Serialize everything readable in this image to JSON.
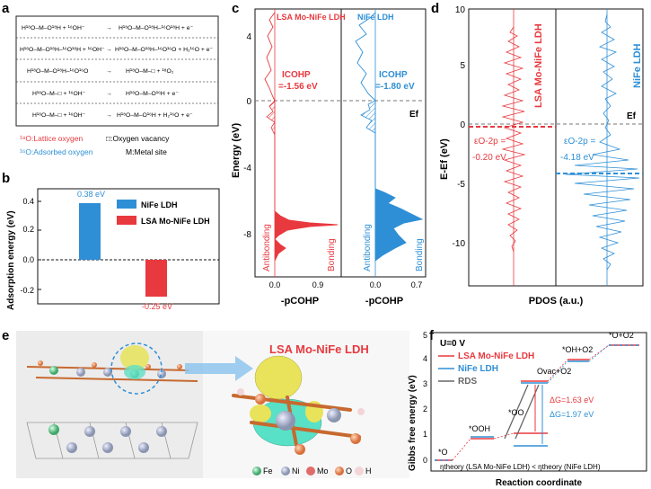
{
  "panel_letters": {
    "a": "a",
    "b": "b",
    "c": "c",
    "d": "d",
    "e": "e",
    "f": "f"
  },
  "panel_a": {
    "rows": [
      {
        "lhs": "H¹⁸O–M–O¹⁸H + ¹⁶OH⁻",
        "rhs": "H¹⁸O–M–O¹⁸H–¹⁶O¹⁸H + e⁻"
      },
      {
        "lhs": "H¹⁸O–M–O¹⁸H–¹⁶O¹⁸H + ¹⁶OH⁻",
        "rhs": "H¹⁸O–M–O¹⁸H–¹⁶O¹⁶O + H₂¹⁶O + e⁻"
      },
      {
        "lhs": "H¹⁸O–M–O¹⁸H–¹⁶O¹⁶O",
        "rhs": "H¹⁸O–M–□ + ¹⁸O₂"
      },
      {
        "lhs": "H¹⁸O–M–□ + ¹⁶OH⁻",
        "rhs": "H¹⁸O–M–O¹⁶H + e⁻"
      },
      {
        "lhs": "H¹⁸O–M–□ + ¹⁶OH⁻",
        "rhs": "H¹⁸O–M–O¹⁶H + H₂¹⁶O + e⁻"
      }
    ],
    "legend_lattice": "¹⁸O:Lattice oxygen",
    "legend_vacancy": "□:Oxygen vacancy",
    "legend_adsorbed": "¹⁶O:Adsorbed oxygen",
    "legend_metal": "M:Metal site"
  },
  "panel_b": {
    "ylabel": "Adsorption energy (eV)",
    "yticks": [
      "0.4",
      "0.2",
      "0.0",
      "-0.2"
    ],
    "legend": [
      "NiFe LDH",
      "LSA Mo-NiFe LDH"
    ],
    "bar_labels": [
      "0.38 eV",
      "-0.25 eV"
    ]
  },
  "panel_c": {
    "ylabel": "Energy (eV)",
    "yticks": [
      "4",
      "0",
      "-4",
      "-8"
    ],
    "left_title": "LSA Mo-NiFe LDH",
    "right_title": "NiFe LDH",
    "left_icohp": "ICOHP",
    "left_icohp_val": "=-1.56 eV",
    "right_icohp": "ICOHP",
    "right_icohp_val": "=-1.80 eV",
    "ef": "Ef",
    "antibonding": "Antibonding",
    "bonding": "Bonding",
    "xlabel": "-pCOHP",
    "xticks_left": [
      "0.0",
      "0.9"
    ],
    "xticks_right": [
      "0.0",
      "0.7"
    ]
  },
  "panel_d": {
    "ylabel": "E-Ef (eV)",
    "yticks": [
      "10",
      "5",
      "0",
      "-5",
      "-10"
    ],
    "xlabel": "PDOS (a.u.)",
    "left_title": "LSA Mo-NiFe LDH",
    "right_title": "NiFe LDH",
    "ef": "Ef",
    "eps_left": "εO-2p =",
    "eps_left_val": "-0.20 eV",
    "eps_right": "εO-2p =",
    "eps_right_val": "-4.18 eV"
  },
  "panel_e": {
    "title": "LSA Mo-NiFe LDH",
    "legend": [
      "Fe",
      "Ni",
      "Mo",
      "O",
      "H"
    ]
  },
  "panel_f": {
    "ylabel": "Gibbs free energy (eV)",
    "yticks": [
      "5",
      "4",
      "3",
      "2",
      "1",
      "0"
    ],
    "xlabel": "Reaction coordinate",
    "condition": "U=0 V",
    "legend": [
      "LSA Mo-NiFe LDH",
      "NiFe LDH",
      "RDS"
    ],
    "states": [
      "*O",
      "*OOH",
      "*OO",
      "Ovac+O2",
      "*OH+O2",
      "*O+O2"
    ],
    "dg1": "ΔG=1.63 eV",
    "dg2": "ΔG=1.97 eV",
    "footnote": "ηtheory (LSA Mo-NiFe LDH) < ηtheory (NiFe LDH)"
  },
  "colors": {
    "red": "#e8393f",
    "blue": "#2e8fd6",
    "gray": "#666666"
  }
}
